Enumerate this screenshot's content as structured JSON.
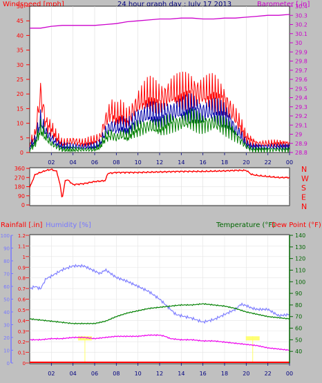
{
  "chart_data": [
    {
      "type": "line",
      "title": "24 hour graph day : July 17 2013",
      "left_axis": {
        "label": "Windspeed [mph]",
        "ylim": [
          0,
          50
        ],
        "ticks": [
          "0",
          "5",
          "10",
          "15",
          "20",
          "25",
          "30",
          "35",
          "40",
          "45",
          "50"
        ],
        "color": "#ff0000"
      },
      "right_axis": {
        "label": "Barometer [.in]",
        "ylim": [
          28.8,
          30.4
        ],
        "ticks": [
          "28.8",
          "28.9",
          "29",
          "29.1",
          "29.2",
          "29.3",
          "29.4",
          "29.5",
          "29.6",
          "29.7",
          "29.8",
          "29.9",
          "30",
          "30.1",
          "30.2",
          "30.3",
          "30.4"
        ],
        "color": "#cc00cc"
      },
      "x_hours": [
        "00",
        "02",
        "04",
        "06",
        "08",
        "10",
        "12",
        "14",
        "16",
        "18",
        "20",
        "22",
        "00"
      ],
      "x_tick_labels": [
        "02",
        "04",
        "06",
        "08",
        "10",
        "12",
        "14",
        "16",
        "18",
        "20",
        "22",
        "00"
      ],
      "series": [
        {
          "color": "#ff0000",
          "x": [
            0,
            0.5,
            1,
            1.5,
            2,
            2.5,
            3,
            4,
            5,
            6,
            6.5,
            7,
            7.5,
            8,
            8.5,
            9,
            9.5,
            10,
            11,
            12,
            13,
            14,
            15,
            16,
            17,
            18,
            18.5,
            19,
            19.5,
            20,
            20.5,
            21,
            22,
            23,
            24
          ],
          "values": [
            3,
            6,
            20,
            10,
            8,
            5,
            3,
            4,
            3,
            4,
            5,
            11,
            14,
            12,
            13,
            11,
            14,
            17,
            19,
            18,
            20,
            20,
            21,
            20,
            20,
            18,
            15,
            12,
            9,
            5,
            4,
            3,
            3,
            3,
            3
          ]
        },
        {
          "color": "#0000aa",
          "x": [
            0,
            0.5,
            1,
            1.5,
            2,
            2.5,
            3,
            4,
            5,
            6,
            6.5,
            7,
            7.5,
            8,
            8.5,
            9,
            9.5,
            10,
            11,
            12,
            13,
            14,
            15,
            16,
            17,
            18,
            18.5,
            19,
            19.5,
            20,
            20.5,
            21,
            22,
            23,
            24
          ],
          "values": [
            2,
            4,
            11,
            7,
            5,
            3,
            2,
            2,
            2,
            2,
            3,
            7,
            9,
            8,
            9,
            8,
            10,
            12,
            13,
            12,
            14,
            14,
            15,
            14,
            14,
            13,
            11,
            8,
            6,
            3,
            2,
            2,
            2,
            2,
            2
          ]
        },
        {
          "color": "#008000",
          "x": [
            0,
            0.5,
            1,
            1.5,
            2,
            2.5,
            3,
            4,
            5,
            6,
            6.5,
            7,
            7.5,
            8,
            8.5,
            9,
            9.5,
            10,
            11,
            12,
            13,
            14,
            15,
            16,
            17,
            18,
            18.5,
            19,
            19.5,
            20,
            20.5,
            21,
            22,
            23,
            24
          ],
          "values": [
            1,
            3,
            8,
            5,
            3,
            2,
            1,
            1,
            1,
            1,
            2,
            5,
            6,
            5,
            6,
            5,
            7,
            8,
            9,
            8,
            10,
            10,
            11,
            10,
            10,
            9,
            8,
            6,
            4,
            2,
            1,
            1,
            1,
            1,
            1
          ]
        },
        {
          "color": "#cc00cc",
          "axis": "right",
          "x": [
            0,
            1,
            2,
            3,
            4,
            5,
            6,
            7,
            8,
            9,
            10,
            11,
            12,
            13,
            14,
            15,
            16,
            17,
            18,
            19,
            20,
            21,
            22,
            23,
            24
          ],
          "values": [
            30.16,
            30.16,
            30.18,
            30.19,
            30.19,
            30.19,
            30.19,
            30.2,
            30.21,
            30.23,
            30.24,
            30.25,
            30.26,
            30.26,
            30.27,
            30.27,
            30.26,
            30.26,
            30.27,
            30.27,
            30.28,
            30.29,
            30.3,
            30.3,
            30.31
          ]
        }
      ]
    },
    {
      "type": "line",
      "left_axis": {
        "ylim": [
          0,
          360
        ],
        "ticks": [
          "0",
          "90",
          "180",
          "270",
          "360"
        ],
        "color": "#ff0000"
      },
      "right_labels": [
        "N",
        "W",
        "S",
        "E",
        "N"
      ],
      "x_hours": [
        "00",
        "02",
        "04",
        "06",
        "08",
        "10",
        "12",
        "14",
        "16",
        "18",
        "20",
        "22",
        "00"
      ],
      "series": [
        {
          "color": "#ff0000",
          "x": [
            0,
            0.3,
            0.5,
            1,
            1.5,
            2,
            2.5,
            2.8,
            3,
            3.3,
            3.6,
            4,
            5,
            6,
            7,
            7.2,
            8,
            10,
            12,
            14,
            16,
            18,
            19,
            20,
            20.5,
            21,
            22,
            23,
            24
          ],
          "values": [
            170,
            250,
            300,
            320,
            340,
            350,
            330,
            200,
            60,
            250,
            240,
            200,
            210,
            230,
            240,
            310,
            320,
            320,
            325,
            330,
            330,
            335,
            340,
            340,
            300,
            290,
            280,
            270,
            270
          ]
        }
      ]
    },
    {
      "type": "line",
      "axes": {
        "rainfall": {
          "label": "Rainfall [.in]",
          "ylim": [
            0,
            1.2
          ],
          "ticks": [
            "0",
            "0.1",
            "0.2",
            "0.3",
            "0.4",
            "0.5",
            "0.6",
            "0.7",
            "0.8",
            "0.9",
            "1",
            "1.1",
            "1.2"
          ],
          "color": "#ff0000"
        },
        "humidity": {
          "label": "Humidity [%]",
          "ylim": [
            0,
            100
          ],
          "ticks": [
            "0",
            "10",
            "20",
            "30",
            "40",
            "50",
            "60",
            "70",
            "80",
            "90",
            "100"
          ],
          "color": "#7777ff"
        },
        "temperature": {
          "label": "Temperature (°F)",
          "ylim": [
            30,
            140
          ],
          "ticks": [
            "40",
            "50",
            "60",
            "70",
            "80",
            "90",
            "100",
            "110",
            "120",
            "130",
            "140"
          ],
          "color": "#006600"
        },
        "dewpoint": {
          "label": "Dew Point (°F)",
          "color": "#ff0000"
        }
      },
      "x_hours": [
        "00",
        "02",
        "04",
        "06",
        "08",
        "10",
        "12",
        "14",
        "16",
        "18",
        "20",
        "22",
        "00"
      ],
      "series": [
        {
          "color": "#8080ff",
          "axis": "humidity",
          "x": [
            0,
            0.5,
            1,
            1.5,
            2,
            3,
            4,
            5,
            6,
            6.5,
            7,
            8,
            9,
            10,
            11,
            12,
            12.5,
            13,
            13.5,
            14,
            15,
            16,
            17,
            18,
            19,
            19.5,
            20,
            20.5,
            21,
            22,
            23,
            24
          ],
          "values": [
            58,
            60,
            58,
            66,
            68,
            73,
            76,
            76,
            72,
            70,
            73,
            67,
            64,
            60,
            56,
            50,
            46,
            42,
            38,
            37,
            35,
            32,
            34,
            38,
            42,
            46,
            45,
            43,
            42,
            42,
            37,
            38
          ]
        },
        {
          "color": "#008000",
          "axis": "temperature",
          "x": [
            0,
            1,
            2,
            3,
            4,
            5,
            6,
            7,
            8,
            9,
            10,
            11,
            12,
            13,
            14,
            15,
            16,
            17,
            18,
            19,
            20,
            21,
            22,
            23,
            24
          ],
          "values": [
            68,
            67,
            66,
            65,
            64,
            64,
            64,
            66,
            70,
            73,
            75,
            77,
            78,
            79,
            80,
            80,
            81,
            80,
            79,
            77,
            74,
            72,
            70,
            69,
            68
          ]
        },
        {
          "color": "#ee00ee",
          "axis": "temperature",
          "x": [
            0,
            1,
            2,
            3,
            4,
            5,
            6,
            7,
            8,
            9,
            10,
            11,
            12,
            12.5,
            13,
            14,
            15,
            16,
            17,
            18,
            19,
            20,
            21,
            22,
            23,
            24
          ],
          "values": [
            50,
            50,
            51,
            51,
            52,
            52,
            51,
            52,
            53,
            53,
            53,
            54,
            54,
            53,
            51,
            50,
            50,
            49,
            49,
            48,
            47,
            46,
            45,
            43,
            42,
            41
          ]
        },
        {
          "color": "#ff0000",
          "axis": "rainfall",
          "x": [
            0,
            24
          ],
          "values": [
            0,
            0
          ]
        }
      ],
      "markers": [
        {
          "x": 5.1,
          "color": "#ffff66"
        },
        {
          "x": 20.6,
          "color": "#ffff66"
        }
      ]
    }
  ]
}
